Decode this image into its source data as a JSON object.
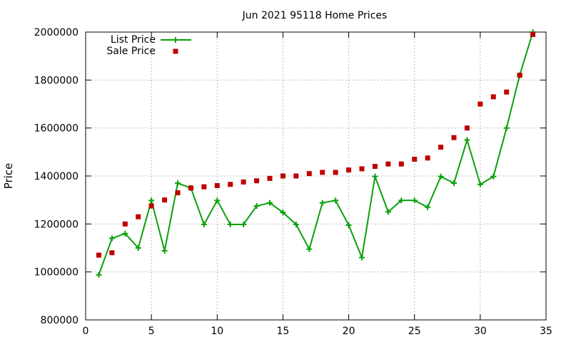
{
  "chart_data": {
    "type": "line",
    "title": "Jun 2021 95118 Home Prices",
    "xlabel": "",
    "ylabel": "Price",
    "xlim": [
      0,
      35
    ],
    "ylim": [
      800000,
      2000000
    ],
    "xticks": [
      0,
      5,
      10,
      15,
      20,
      25,
      30,
      35
    ],
    "yticks": [
      800000,
      1000000,
      1200000,
      1400000,
      1600000,
      1800000,
      2000000
    ],
    "x_tick_labels": [
      "0",
      "5",
      "10",
      "15",
      "20",
      "25",
      "30",
      "35"
    ],
    "y_tick_labels": [
      "800000",
      "1000000",
      "1200000",
      "1400000",
      "1600000",
      "1800000",
      "2000000"
    ],
    "grid": true,
    "legend_position": "top-left",
    "x": [
      1,
      2,
      3,
      4,
      5,
      6,
      7,
      8,
      9,
      10,
      11,
      12,
      13,
      14,
      15,
      16,
      17,
      18,
      19,
      20,
      21,
      22,
      23,
      24,
      25,
      26,
      27,
      28,
      29,
      30,
      31,
      32,
      33,
      34
    ],
    "series": [
      {
        "name": "List Price",
        "style": "line+cross",
        "color": "#0aa00a",
        "values": [
          988000,
          1140000,
          1160000,
          1100000,
          1298000,
          1088000,
          1370000,
          1350000,
          1198000,
          1298000,
          1198000,
          1198000,
          1275000,
          1288000,
          1248000,
          1198000,
          1095000,
          1288000,
          1298000,
          1195000,
          1060000,
          1398000,
          1250000,
          1298000,
          1298000,
          1270000,
          1398000,
          1370000,
          1550000,
          1365000,
          1398000,
          1600000,
          1820000,
          2000000
        ]
      },
      {
        "name": "Sale Price",
        "style": "square",
        "color": "#c00000",
        "values": [
          1070000,
          1080000,
          1200000,
          1230000,
          1275000,
          1300000,
          1330000,
          1350000,
          1355000,
          1360000,
          1365000,
          1375000,
          1380000,
          1390000,
          1400000,
          1400000,
          1410000,
          1415000,
          1415000,
          1425000,
          1430000,
          1440000,
          1450000,
          1450000,
          1470000,
          1475000,
          1520000,
          1560000,
          1600000,
          1700000,
          1730000,
          1750000,
          1820000,
          1990000
        ]
      }
    ]
  }
}
